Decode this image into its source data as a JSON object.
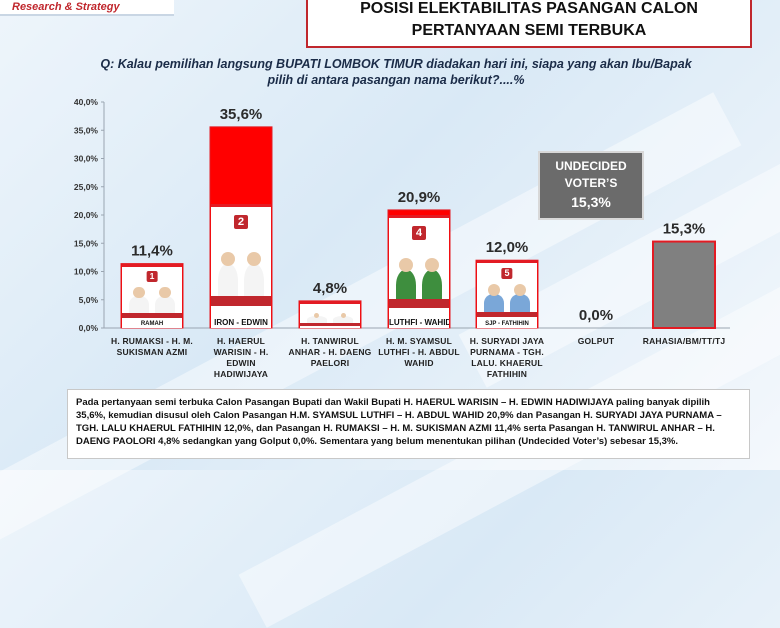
{
  "brand": {
    "tagline": "Research & Strategy"
  },
  "title": {
    "line1": "POSISI ELEKTABILITAS PASANGAN CALON",
    "line2": "PERTANYAAN SEMI TERBUKA"
  },
  "question": "Q: Kalau pemilihan langsung BUPATI LOMBOK TIMUR diadakan hari ini, siapa yang akan Ibu/Bapak pilih di antara pasangan nama berikut?....%",
  "undecided": {
    "line1": "UNDECIDED",
    "line2": "VOTER’S",
    "value": "15,3%"
  },
  "colors": {
    "candidate_bar": "#ff0000",
    "other_bar": "#808080",
    "bar_border": "#e31b23",
    "title_border": "#c0272d"
  },
  "photos": [
    {
      "number": "1",
      "caption": "RAMAH"
    },
    {
      "number": "2",
      "caption": "IRON - EDWIN"
    },
    {
      "number": "",
      "caption": ""
    },
    {
      "number": "4",
      "caption": "LUTHFI - WAHID"
    },
    {
      "number": "5",
      "caption": "SJP - FATHIHIN"
    }
  ],
  "chart_data": {
    "type": "bar",
    "categories": [
      "H. RUMAKSI - H. M. SUKISMAN AZMI",
      "H. HAERUL WARISIN - H. EDWIN HADIWIJAYA",
      "H. TANWIRUL ANHAR - H. DAENG PAELORI",
      "H. M. SYAMSUL LUTHFI - H. ABDUL WAHID",
      "H. SURYADI JAYA PURNAMA - TGH. LALU. KHAERUL FATHIHIN",
      "GOLPUT",
      "RAHASIA/BM/TT/TJ"
    ],
    "values": [
      11.4,
      35.6,
      4.8,
      20.9,
      12.0,
      0.0,
      15.3
    ],
    "value_labels": [
      "11,4%",
      "35,6%",
      "4,8%",
      "20,9%",
      "12,0%",
      "0,0%",
      "15,3%"
    ],
    "y_ticks": [
      "0,0%",
      "5,0%",
      "10,0%",
      "15,0%",
      "20,0%",
      "25,0%",
      "30,0%",
      "35,0%",
      "40,0%"
    ],
    "ylim": [
      0,
      40
    ],
    "grid": false,
    "title": "",
    "xlabel": "",
    "ylabel": ""
  },
  "summary": "Pada pertanyaan semi terbuka Calon Pasangan Bupati dan Wakil Bupati H. HAERUL WARISIN – H. EDWIN HADIWIJAYA paling banyak dipilih 35,6%, kemudian disusul oleh Calon Pasangan H.M. SYAMSUL LUTHFI – H. ABDUL WAHID 20,9% dan Pasangan H. SURYADI JAYA PURNAMA – TGH. LALU KHAERUL FATHIHIN 12,0%, dan Pasangan H. RUMAKSI – H. M. SUKISMAN AZMI 11,4% serta Pasangan H. TANWIRUL ANHAR – H. DAENG PAOLORI 4,8% sedangkan yang Golput 0,0%. Sementara yang belum menentukan pilihan (Undecided Voter’s) sebesar 15,3%."
}
